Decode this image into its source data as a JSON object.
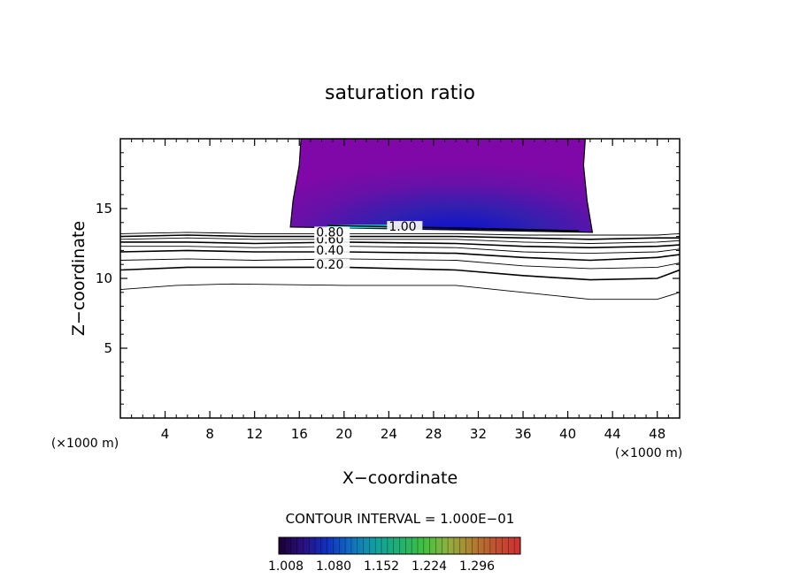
{
  "chart_data": {
    "type": "contour",
    "title": "saturation ratio",
    "xlabel": "X−coordinate",
    "ylabel": "Z−coordinate",
    "x_unit_left": "(×1000 m)",
    "x_unit_right": "(×1000 m)",
    "xlim": [
      0,
      50
    ],
    "ylim": [
      0,
      20
    ],
    "x_ticks": [
      4,
      8,
      12,
      16,
      20,
      24,
      28,
      32,
      36,
      40,
      44,
      48
    ],
    "x_tick_labels": [
      "4",
      "8",
      "12",
      "16",
      "20",
      "24",
      "28",
      "32",
      "36",
      "40",
      "44",
      "48"
    ],
    "y_ticks": [
      5,
      10,
      15
    ],
    "y_tick_labels": [
      "5",
      "10",
      "15"
    ],
    "contour_interval_text": "CONTOUR INTERVAL = 1.000E−01",
    "contour_labels": [
      {
        "text": "0.20",
        "x": 17.5,
        "z": 10.9
      },
      {
        "text": "0.40",
        "x": 17.5,
        "z": 11.9
      },
      {
        "text": "0.60",
        "x": 17.5,
        "z": 12.7
      },
      {
        "text": "0.80",
        "x": 17.5,
        "z": 13.2
      },
      {
        "text": "1.00",
        "x": 24.0,
        "z": 13.6
      }
    ],
    "contours": [
      {
        "level": 0.1,
        "points": [
          [
            0,
            9.2
          ],
          [
            5,
            9.5
          ],
          [
            10,
            9.6
          ],
          [
            20,
            9.5
          ],
          [
            30,
            9.5
          ],
          [
            36,
            9.0
          ],
          [
            42,
            8.5
          ],
          [
            48,
            8.5
          ],
          [
            50,
            9.0
          ]
        ]
      },
      {
        "level": 0.2,
        "points": [
          [
            0,
            10.6
          ],
          [
            6,
            10.8
          ],
          [
            12,
            10.8
          ],
          [
            20,
            10.8
          ],
          [
            30,
            10.6
          ],
          [
            36,
            10.2
          ],
          [
            42,
            9.9
          ],
          [
            48,
            10.0
          ],
          [
            50,
            10.6
          ]
        ]
      },
      {
        "level": 0.3,
        "points": [
          [
            0,
            11.3
          ],
          [
            6,
            11.4
          ],
          [
            12,
            11.3
          ],
          [
            20,
            11.4
          ],
          [
            30,
            11.3
          ],
          [
            36,
            10.9
          ],
          [
            42,
            10.7
          ],
          [
            48,
            10.8
          ],
          [
            50,
            11.1
          ]
        ]
      },
      {
        "level": 0.4,
        "points": [
          [
            0,
            11.9
          ],
          [
            6,
            12.0
          ],
          [
            12,
            11.9
          ],
          [
            20,
            11.9
          ],
          [
            30,
            11.8
          ],
          [
            36,
            11.5
          ],
          [
            42,
            11.3
          ],
          [
            48,
            11.5
          ],
          [
            50,
            11.7
          ]
        ]
      },
      {
        "level": 0.5,
        "points": [
          [
            0,
            12.3
          ],
          [
            6,
            12.3
          ],
          [
            12,
            12.2
          ],
          [
            20,
            12.3
          ],
          [
            30,
            12.2
          ],
          [
            36,
            11.9
          ],
          [
            42,
            11.8
          ],
          [
            48,
            11.9
          ],
          [
            50,
            12.1
          ]
        ]
      },
      {
        "level": 0.6,
        "points": [
          [
            0,
            12.6
          ],
          [
            6,
            12.6
          ],
          [
            12,
            12.5
          ],
          [
            20,
            12.6
          ],
          [
            30,
            12.5
          ],
          [
            36,
            12.3
          ],
          [
            42,
            12.2
          ],
          [
            48,
            12.3
          ],
          [
            50,
            12.4
          ]
        ]
      },
      {
        "level": 0.7,
        "points": [
          [
            0,
            12.8
          ],
          [
            6,
            12.9
          ],
          [
            12,
            12.8
          ],
          [
            20,
            12.8
          ],
          [
            30,
            12.8
          ],
          [
            36,
            12.6
          ],
          [
            42,
            12.5
          ],
          [
            48,
            12.6
          ],
          [
            50,
            12.7
          ]
        ]
      },
      {
        "level": 0.8,
        "points": [
          [
            0,
            13.0
          ],
          [
            6,
            13.1
          ],
          [
            12,
            13.0
          ],
          [
            20,
            13.0
          ],
          [
            30,
            13.0
          ],
          [
            36,
            12.9
          ],
          [
            42,
            12.8
          ],
          [
            48,
            12.9
          ],
          [
            50,
            12.9
          ]
        ]
      },
      {
        "level": 0.9,
        "points": [
          [
            0,
            13.2
          ],
          [
            6,
            13.3
          ],
          [
            12,
            13.2
          ],
          [
            20,
            13.2
          ],
          [
            30,
            13.2
          ],
          [
            36,
            13.1
          ],
          [
            42,
            13.1
          ],
          [
            48,
            13.1
          ],
          [
            50,
            13.2
          ]
        ]
      },
      {
        "level": 1.0,
        "points": [
          [
            18.5,
            13.8
          ],
          [
            24,
            13.7
          ],
          [
            30,
            13.6
          ],
          [
            36,
            13.5
          ],
          [
            41,
            13.4
          ]
        ]
      }
    ],
    "shaded_region": {
      "x_range": [
        15.2,
        42.2
      ],
      "z_range": [
        13.3,
        20
      ]
    },
    "colorbar": {
      "min": 1.008,
      "max": 1.296,
      "tick_labels": [
        "1.008",
        "1.080",
        "1.152",
        "1.224",
        "1.296"
      ],
      "colors": [
        "#1a0030",
        "#2a1080",
        "#1030c0",
        "#1070c0",
        "#10a0a0",
        "#20b070",
        "#40c040",
        "#90b040",
        "#b08030",
        "#c05030",
        "#d03030"
      ]
    },
    "grid": false
  }
}
